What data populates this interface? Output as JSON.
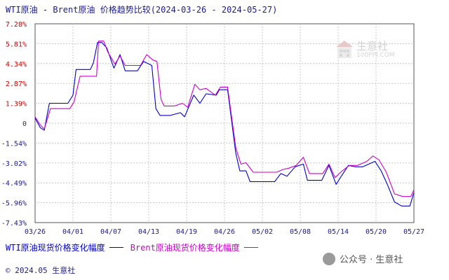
{
  "chart_data": {
    "type": "line",
    "title": "WTI原油 - Brent原油 价格趋势比较(2024-03-26 - 2024-05-27)",
    "y_ticks": [
      "7.28%",
      "5.81%",
      "4.34%",
      "2.87%",
      "1.39%",
      "0",
      "-1.54%",
      "-3.02%",
      "-4.49%",
      "-5.96%",
      "-7.43%"
    ],
    "x_ticks": [
      "03/26",
      "04/01",
      "04/07",
      "04/13",
      "04/19",
      "04/26",
      "05/02",
      "05/08",
      "05/14",
      "05/20",
      "05/27"
    ],
    "ylim": [
      -7.43,
      7.28
    ],
    "grid": true,
    "legend_position": "bottom-left",
    "series": [
      {
        "name": "WTI原油现货价格变化幅度",
        "color": "#0000cc",
        "points": [
          [
            0,
            0.3
          ],
          [
            0.5,
            -0.4
          ],
          [
            0.9,
            -0.6
          ],
          [
            1.4,
            1.4
          ],
          [
            3.2,
            1.4
          ],
          [
            3.7,
            2.0
          ],
          [
            4.0,
            3.9
          ],
          [
            5.4,
            3.9
          ],
          [
            5.7,
            4.4
          ],
          [
            6.1,
            5.9
          ],
          [
            6.5,
            5.9
          ],
          [
            7.0,
            5.5
          ],
          [
            7.7,
            4.0
          ],
          [
            8.3,
            5.0
          ],
          [
            8.8,
            3.8
          ],
          [
            10.0,
            3.8
          ],
          [
            10.6,
            4.5
          ],
          [
            11.4,
            4.2
          ],
          [
            11.8,
            1.0
          ],
          [
            12.2,
            0.5
          ],
          [
            13.2,
            0.5
          ],
          [
            14.2,
            0.7
          ],
          [
            14.6,
            0.4
          ],
          [
            15.5,
            2.0
          ],
          [
            16.1,
            1.4
          ],
          [
            16.7,
            2.1
          ],
          [
            17.7,
            2.0
          ],
          [
            18.0,
            2.4
          ],
          [
            18.8,
            2.4
          ],
          [
            19.6,
            -2.3
          ],
          [
            20.0,
            -3.6
          ],
          [
            20.6,
            -3.6
          ],
          [
            21.0,
            -4.4
          ],
          [
            23.4,
            -4.4
          ],
          [
            24.0,
            -3.8
          ],
          [
            24.6,
            -4.0
          ],
          [
            25.4,
            -3.3
          ],
          [
            26.2,
            -3.1
          ],
          [
            26.6,
            -4.3
          ],
          [
            28.0,
            -4.3
          ],
          [
            28.7,
            -3.2
          ],
          [
            29.4,
            -4.6
          ],
          [
            29.9,
            -4.0
          ],
          [
            30.6,
            -3.2
          ],
          [
            31.3,
            -3.3
          ],
          [
            32.0,
            -3.3
          ],
          [
            33.2,
            -2.9
          ],
          [
            33.8,
            -3.6
          ],
          [
            34.4,
            -4.6
          ],
          [
            35.1,
            -5.9
          ],
          [
            35.8,
            -6.2
          ],
          [
            36.6,
            -6.2
          ],
          [
            37.0,
            -5.2
          ]
        ]
      },
      {
        "name": "Brent原油现货价格变化幅度",
        "color": "#cc00cc",
        "points": [
          [
            0,
            0.4
          ],
          [
            0.5,
            -0.2
          ],
          [
            0.9,
            -0.5
          ],
          [
            1.5,
            1.0
          ],
          [
            3.4,
            1.0
          ],
          [
            3.8,
            1.5
          ],
          [
            4.4,
            3.4
          ],
          [
            6.0,
            3.4
          ],
          [
            6.2,
            6.0
          ],
          [
            6.7,
            6.0
          ],
          [
            7.1,
            5.2
          ],
          [
            7.8,
            4.3
          ],
          [
            8.3,
            4.9
          ],
          [
            8.8,
            4.2
          ],
          [
            10.3,
            4.2
          ],
          [
            10.9,
            5.0
          ],
          [
            11.5,
            4.6
          ],
          [
            11.9,
            4.5
          ],
          [
            12.3,
            1.7
          ],
          [
            12.6,
            1.2
          ],
          [
            13.6,
            1.2
          ],
          [
            14.4,
            1.4
          ],
          [
            14.9,
            1.1
          ],
          [
            15.6,
            2.8
          ],
          [
            16.1,
            2.4
          ],
          [
            16.7,
            2.5
          ],
          [
            17.6,
            2.0
          ],
          [
            18.1,
            2.6
          ],
          [
            18.8,
            2.6
          ],
          [
            19.6,
            -1.9
          ],
          [
            20.1,
            -3.1
          ],
          [
            20.6,
            -3.0
          ],
          [
            21.3,
            -3.7
          ],
          [
            23.6,
            -3.7
          ],
          [
            24.2,
            -3.5
          ],
          [
            24.8,
            -3.4
          ],
          [
            25.5,
            -3.2
          ],
          [
            26.2,
            -2.6
          ],
          [
            26.8,
            -3.8
          ],
          [
            28.1,
            -3.8
          ],
          [
            28.7,
            -3.1
          ],
          [
            29.3,
            -4.1
          ],
          [
            30.0,
            -3.6
          ],
          [
            30.7,
            -3.2
          ],
          [
            31.5,
            -3.2
          ],
          [
            32.4,
            -2.9
          ],
          [
            33.0,
            -2.5
          ],
          [
            33.6,
            -2.8
          ],
          [
            34.3,
            -3.7
          ],
          [
            35.1,
            -5.3
          ],
          [
            35.9,
            -5.5
          ],
          [
            36.7,
            -5.5
          ],
          [
            37.0,
            -5.0
          ]
        ]
      }
    ]
  },
  "watermark": {
    "brand": "生意社",
    "url": "100PPI.COM"
  },
  "footer": {
    "copyright": "© 2024.05 生意社"
  },
  "wechat": {
    "label": "公众号 · 生意社"
  }
}
